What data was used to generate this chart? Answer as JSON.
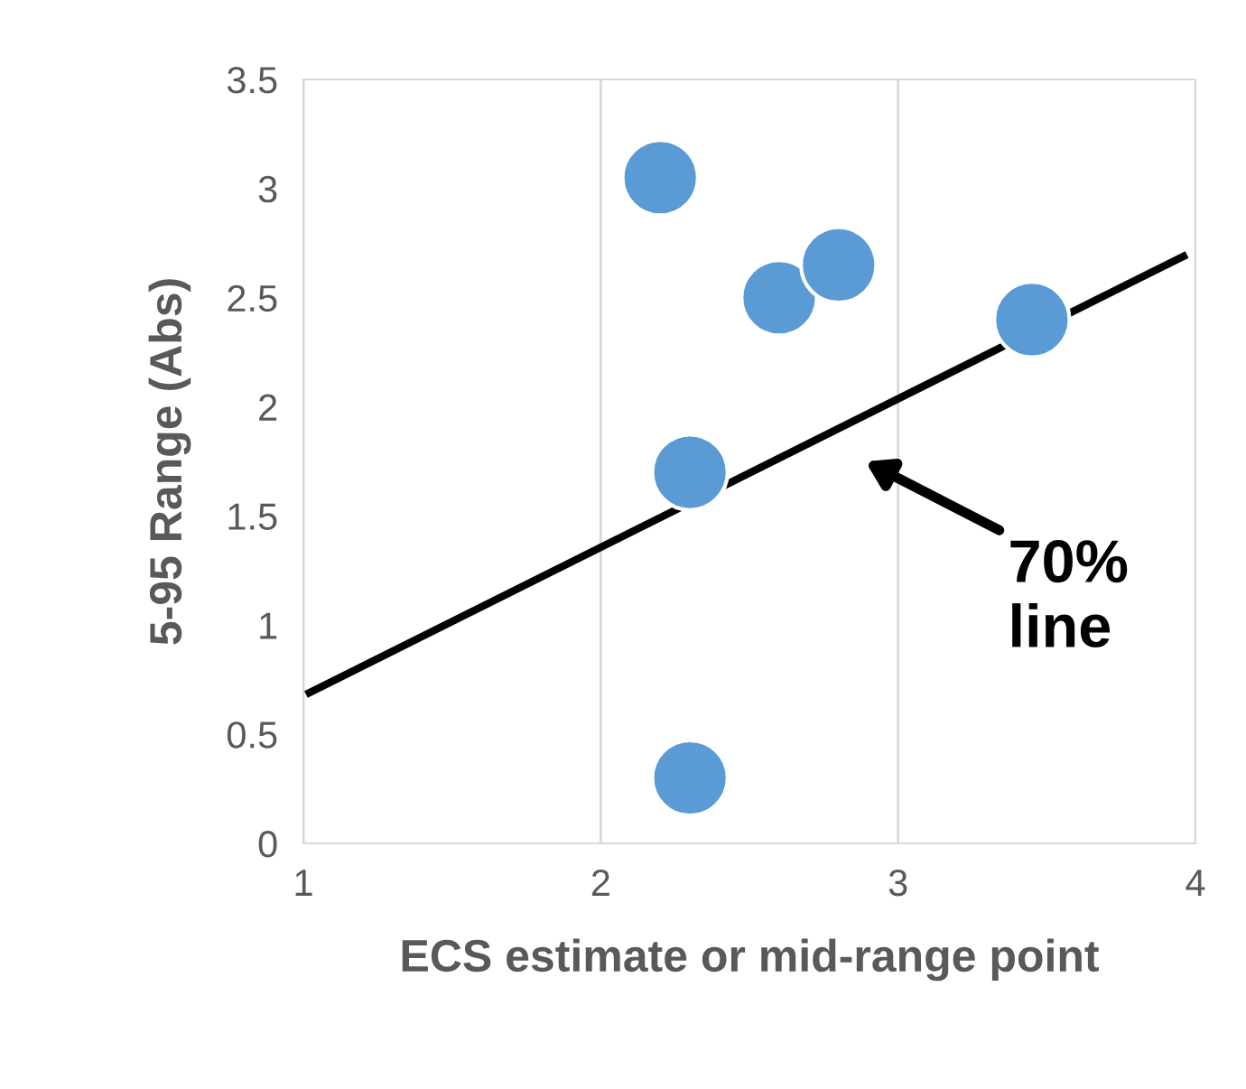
{
  "chart_data": {
    "type": "scatter",
    "xlabel": "ECS estimate or mid-range point",
    "ylabel": "5-95 Range (Abs)",
    "xlim": [
      1,
      4
    ],
    "ylim": [
      0,
      3.5
    ],
    "xticks": [
      1,
      2,
      3,
      4
    ],
    "yticks": [
      0,
      0.5,
      1,
      1.5,
      2,
      2.5,
      3,
      3.5
    ],
    "grid": "x",
    "series": [
      {
        "marker": "circle",
        "color": "#5b9bd5",
        "x": [
          2.2,
          2.6,
          2.8,
          3.45,
          2.3,
          2.3
        ],
        "values": [
          3.05,
          2.5,
          2.65,
          2.4,
          1.7,
          0.3
        ]
      },
      {
        "type": "line",
        "marker": "none",
        "color": "#000000",
        "x": [
          1.02,
          3.96
        ],
        "values": [
          0.69,
          2.69
        ]
      }
    ],
    "annotations": [
      "70%\nline"
    ]
  }
}
